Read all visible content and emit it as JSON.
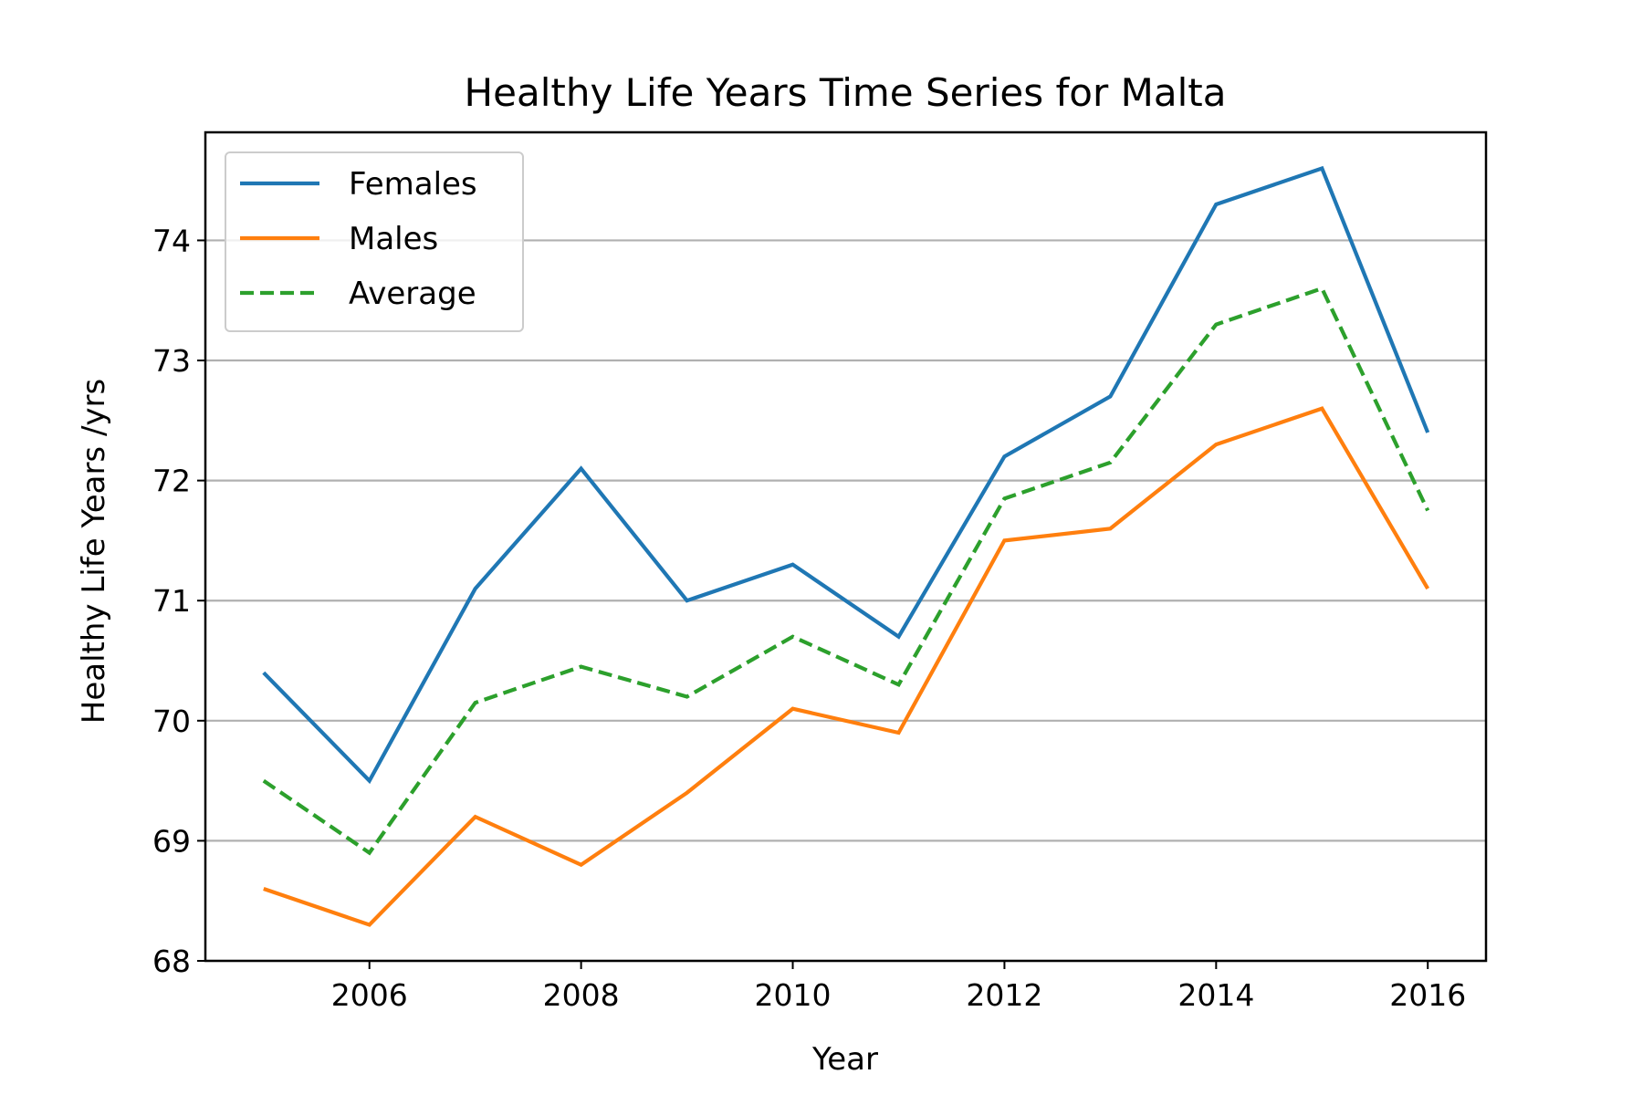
{
  "chart_data": {
    "type": "line",
    "title": "Healthy Life Years Time Series for Malta",
    "xlabel": "Year",
    "ylabel": "Healthy Life Years /yrs",
    "x": [
      2005,
      2006,
      2007,
      2008,
      2009,
      2010,
      2011,
      2012,
      2013,
      2014,
      2015,
      2016
    ],
    "xlim": [
      2004.45,
      2016.55
    ],
    "ylim": [
      68,
      74.9
    ],
    "xticks": [
      2006,
      2008,
      2010,
      2012,
      2014,
      2016
    ],
    "yticks": [
      68,
      69,
      70,
      71,
      72,
      73,
      74
    ],
    "grid": "horizontal",
    "legend_position": "upper-left",
    "series": [
      {
        "name": "Females",
        "color": "#1f77b4",
        "style": "solid",
        "values": [
          70.4,
          69.5,
          71.1,
          72.1,
          71.0,
          71.3,
          70.7,
          72.2,
          72.7,
          74.3,
          74.6,
          72.4
        ]
      },
      {
        "name": "Males",
        "color": "#ff7f0e",
        "style": "solid",
        "values": [
          68.6,
          68.3,
          69.2,
          68.8,
          69.4,
          70.1,
          69.9,
          71.5,
          71.6,
          72.3,
          72.6,
          71.1
        ]
      },
      {
        "name": "Average",
        "color": "#2ca02c",
        "style": "dashed",
        "values": [
          69.5,
          68.9,
          70.15,
          70.45,
          70.2,
          70.7,
          70.3,
          71.85,
          72.15,
          73.3,
          73.6,
          71.75
        ]
      }
    ]
  }
}
